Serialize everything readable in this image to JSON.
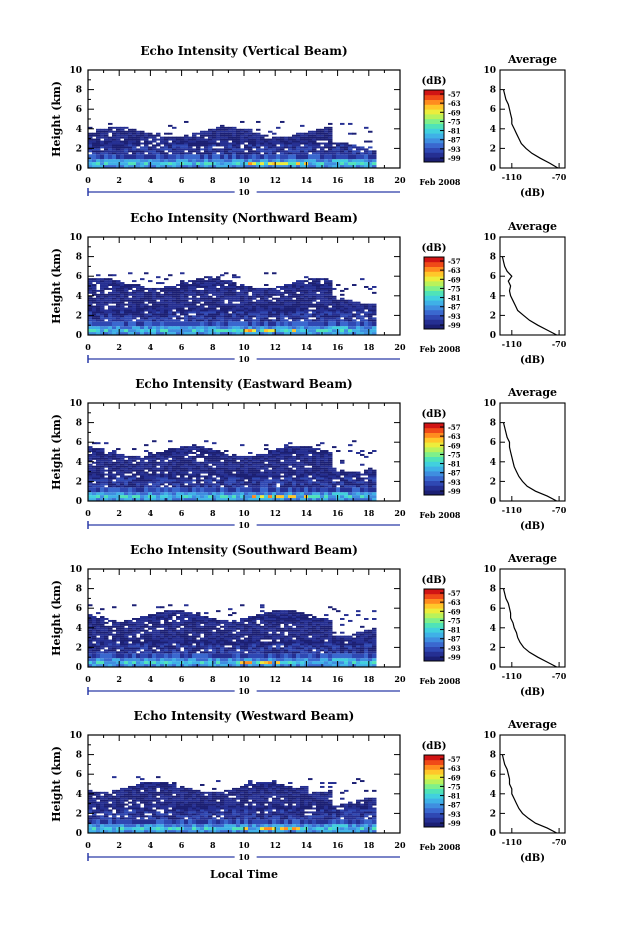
{
  "figure": {
    "footer_label": "Local Time",
    "date_label": "Feb 2008",
    "day_label": "10"
  },
  "colorbar": {
    "unit": "(dB)",
    "ticks": [
      "-57",
      "-63",
      "-69",
      "-75",
      "-81",
      "-87",
      "-93",
      "-99"
    ],
    "colors": [
      "#1b1f73",
      "#252f92",
      "#2f48b3",
      "#3a68cf",
      "#3f8ee0",
      "#3fb1e7",
      "#41d0de",
      "#4fe3b8",
      "#7ff08a",
      "#b9f25b",
      "#eced3c",
      "#ffc72a",
      "#ff8c1f",
      "#f04a18",
      "#d11414"
    ]
  },
  "chart_data": [
    {
      "type": "heatmap",
      "title": "Echo Intensity (Vertical Beam)",
      "xlabel": "",
      "ylabel": "Height (km)",
      "xlim": [
        0,
        20
      ],
      "ylim": [
        0,
        10
      ],
      "x_ticks": [
        "0",
        "2",
        "4",
        "6",
        "8",
        "10",
        "12",
        "14",
        "16",
        "18",
        "20"
      ],
      "y_ticks": [
        "0",
        "2",
        "4",
        "6",
        "8",
        "10"
      ],
      "zlim": [
        -99,
        -57
      ],
      "echo_top_km": 3.6,
      "data_end_hour": 18.4,
      "average_profile": {
        "title": "Average",
        "xlabel": "(dB)",
        "xlim": [
          -120,
          -65
        ],
        "x_ticks": [
          "-110",
          "-70"
        ],
        "y_ticks": [
          "0",
          "2",
          "4",
          "6",
          "8",
          "10"
        ],
        "height_km": [
          0,
          0.5,
          1,
          1.5,
          2,
          2.5,
          3,
          3.5,
          4,
          4.5,
          5,
          5.5,
          6,
          6.5,
          7,
          7.5,
          8
        ],
        "db": [
          -71,
          -78,
          -86,
          -93,
          -98,
          -102,
          -104,
          -106,
          -108,
          -110,
          -110,
          -111,
          -112,
          -113,
          -115,
          -116,
          -117
        ]
      }
    },
    {
      "type": "heatmap",
      "title": "Echo Intensity (Northward Beam)",
      "xlabel": "",
      "ylabel": "Height (km)",
      "xlim": [
        0,
        20
      ],
      "ylim": [
        0,
        10
      ],
      "x_ticks": [
        "0",
        "2",
        "4",
        "6",
        "8",
        "10",
        "12",
        "14",
        "16",
        "18",
        "20"
      ],
      "y_ticks": [
        "0",
        "2",
        "4",
        "6",
        "8",
        "10"
      ],
      "zlim": [
        -99,
        -57
      ],
      "echo_top_km": 5.2,
      "data_end_hour": 18.4,
      "average_profile": {
        "title": "Average",
        "xlabel": "(dB)",
        "xlim": [
          -120,
          -65
        ],
        "x_ticks": [
          "-110",
          "-70"
        ],
        "y_ticks": [
          "0",
          "2",
          "4",
          "6",
          "8",
          "10"
        ],
        "height_km": [
          0,
          0.5,
          1,
          1.5,
          2,
          2.5,
          3,
          3.5,
          4,
          4.5,
          5,
          5.5,
          6,
          6.5,
          7,
          7.5,
          8
        ],
        "db": [
          -72,
          -80,
          -88,
          -95,
          -100,
          -105,
          -107,
          -109,
          -111,
          -112,
          -111,
          -113,
          -110,
          -114,
          -116,
          -117,
          -118
        ]
      }
    },
    {
      "type": "heatmap",
      "title": "Echo Intensity (Eastward Beam)",
      "xlabel": "",
      "ylabel": "Height (km)",
      "xlim": [
        0,
        20
      ],
      "ylim": [
        0,
        10
      ],
      "x_ticks": [
        "0",
        "2",
        "4",
        "6",
        "8",
        "10",
        "12",
        "14",
        "16",
        "18",
        "20"
      ],
      "y_ticks": [
        "0",
        "2",
        "4",
        "6",
        "8",
        "10"
      ],
      "zlim": [
        -99,
        -57
      ],
      "echo_top_km": 5.0,
      "data_end_hour": 18.4,
      "average_profile": {
        "title": "Average",
        "xlabel": "(dB)",
        "xlim": [
          -120,
          -65
        ],
        "x_ticks": [
          "-110",
          "-70"
        ],
        "y_ticks": [
          "0",
          "2",
          "4",
          "6",
          "8",
          "10"
        ],
        "height_km": [
          0,
          0.5,
          1,
          1.5,
          2,
          2.5,
          3,
          3.5,
          4,
          4.5,
          5,
          5.5,
          6,
          6.5,
          7,
          7.5,
          8
        ],
        "db": [
          -72,
          -80,
          -90,
          -97,
          -101,
          -104,
          -106,
          -108,
          -109,
          -110,
          -111,
          -112,
          -112,
          -114,
          -115,
          -116,
          -117
        ]
      }
    },
    {
      "type": "heatmap",
      "title": "Echo Intensity (Southward Beam)",
      "xlabel": "",
      "ylabel": "Height (km)",
      "xlim": [
        0,
        20
      ],
      "ylim": [
        0,
        10
      ],
      "x_ticks": [
        "0",
        "2",
        "4",
        "6",
        "8",
        "10",
        "12",
        "14",
        "16",
        "18",
        "20"
      ],
      "y_ticks": [
        "0",
        "2",
        "4",
        "6",
        "8",
        "10"
      ],
      "zlim": [
        -99,
        -57
      ],
      "echo_top_km": 5.2,
      "data_end_hour": 18.4,
      "average_profile": {
        "title": "Average",
        "xlabel": "(dB)",
        "xlim": [
          -120,
          -65
        ],
        "x_ticks": [
          "-110",
          "-70"
        ],
        "y_ticks": [
          "0",
          "2",
          "4",
          "6",
          "8",
          "10"
        ],
        "height_km": [
          0,
          0.5,
          1,
          1.5,
          2,
          2.5,
          3,
          3.5,
          4,
          4.5,
          5,
          5.5,
          6,
          6.5,
          7,
          7.5,
          8
        ],
        "db": [
          -72,
          -80,
          -88,
          -95,
          -100,
          -103,
          -105,
          -106,
          -108,
          -109,
          -111,
          -111,
          -112,
          -113,
          -115,
          -116,
          -117
        ]
      }
    },
    {
      "type": "heatmap",
      "title": "Echo Intensity (Westward Beam)",
      "xlabel": "",
      "ylabel": "Height (km)",
      "xlim": [
        0,
        20
      ],
      "ylim": [
        0,
        10
      ],
      "x_ticks": [
        "0",
        "2",
        "4",
        "6",
        "8",
        "10",
        "12",
        "14",
        "16",
        "18",
        "20"
      ],
      "y_ticks": [
        "0",
        "2",
        "4",
        "6",
        "8",
        "10"
      ],
      "zlim": [
        -99,
        -57
      ],
      "echo_top_km": 4.6,
      "data_end_hour": 18.4,
      "average_profile": {
        "title": "Average",
        "xlabel": "(dB)",
        "xlim": [
          -120,
          -65
        ],
        "x_ticks": [
          "-110",
          "-70"
        ],
        "y_ticks": [
          "0",
          "2",
          "4",
          "6",
          "8",
          "10"
        ],
        "height_km": [
          0,
          0.5,
          1,
          1.5,
          2,
          2.5,
          3,
          3.5,
          4,
          4.5,
          5,
          5.5,
          6,
          6.5,
          7,
          7.5,
          8
        ],
        "db": [
          -72,
          -80,
          -90,
          -96,
          -101,
          -104,
          -106,
          -108,
          -110,
          -110,
          -112,
          -112,
          -113,
          -114,
          -116,
          -117,
          -118
        ]
      }
    }
  ]
}
